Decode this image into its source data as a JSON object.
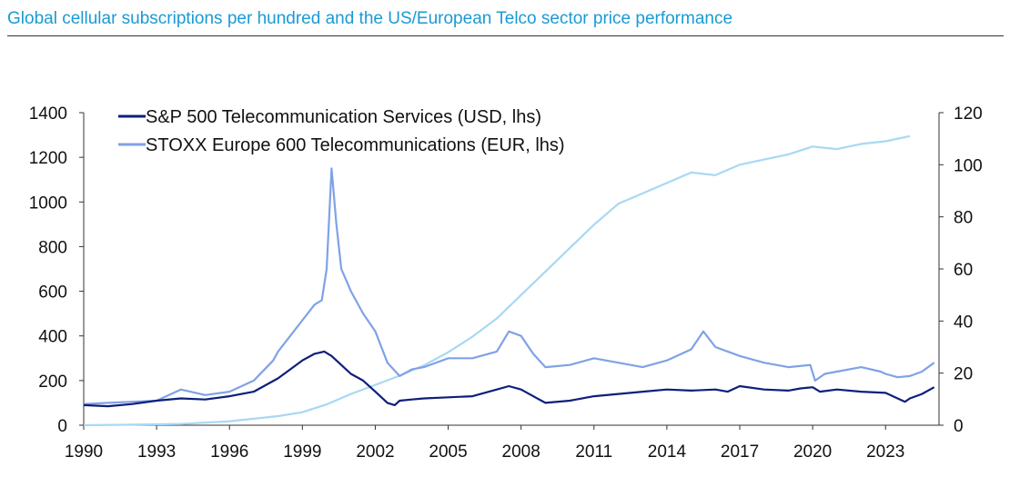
{
  "title": "Global cellular subscriptions per hundred and the US/European Telco sector price performance",
  "colors": {
    "title": "#1a9ad6",
    "sp500": "#0d1f7a",
    "stoxx": "#7fa2e6",
    "subs": "#a8d8f4"
  },
  "chart_data": {
    "type": "line",
    "title": "",
    "xlabel": "",
    "ylabel": "",
    "xlim": [
      1990,
      2025.2
    ],
    "ylim": [
      0,
      1400
    ],
    "ylim_right": [
      0,
      120
    ],
    "x_ticks": [
      "1990",
      "1993",
      "1996",
      "1999",
      "2002",
      "2005",
      "2008",
      "2011",
      "2014",
      "2017",
      "2020",
      "2023"
    ],
    "y_ticks": [
      "0",
      "200",
      "400",
      "600",
      "800",
      "1000",
      "1200",
      "1400"
    ],
    "y_ticks_right": [
      "0",
      "20",
      "40",
      "60",
      "80",
      "100",
      "120"
    ],
    "legend_position": "top-left",
    "grid": false,
    "series": [
      {
        "name": "S&P 500 Telecommunication Services (USD, lhs)",
        "axis": "left",
        "color": "#0d1f7a",
        "x": [
          1990,
          1991,
          1992,
          1993,
          1994,
          1995,
          1996,
          1997,
          1998,
          1999,
          1999.5,
          1999.9,
          2000.2,
          2000.6,
          2001,
          2001.5,
          2002,
          2002.5,
          2002.8,
          2003,
          2003.5,
          2004,
          2005,
          2006,
          2007,
          2007.5,
          2008,
          2008.5,
          2009,
          2010,
          2011,
          2012,
          2013,
          2014,
          2015,
          2016,
          2016.5,
          2017,
          2018,
          2019,
          2019.5,
          2020,
          2020.3,
          2021,
          2022,
          2023,
          2023.8,
          2024,
          2024.5,
          2025
        ],
        "y": [
          90,
          85,
          95,
          110,
          120,
          115,
          130,
          150,
          210,
          290,
          320,
          330,
          310,
          270,
          230,
          200,
          150,
          100,
          90,
          110,
          115,
          120,
          125,
          130,
          160,
          175,
          160,
          130,
          100,
          110,
          130,
          140,
          150,
          160,
          155,
          160,
          150,
          175,
          160,
          155,
          165,
          170,
          150,
          160,
          150,
          145,
          105,
          120,
          140,
          170
        ]
      },
      {
        "name": "STOXX Europe 600 Telecommunications (EUR, lhs)",
        "axis": "left",
        "color": "#7fa2e6",
        "x": [
          1990,
          1991,
          1992,
          1993,
          1994,
          1995,
          1996,
          1997,
          1997.8,
          1998,
          1998.5,
          1999,
          1999.5,
          1999.8,
          2000,
          2000.2,
          2000.4,
          2000.6,
          2001,
          2001.5,
          2002,
          2002.5,
          2003,
          2003.5,
          2004,
          2005,
          2006,
          2007,
          2007.5,
          2008,
          2008.5,
          2009,
          2010,
          2011,
          2012,
          2013,
          2014,
          2015,
          2015.5,
          2016,
          2017,
          2018,
          2019,
          2019.9,
          2020.1,
          2020.5,
          2021,
          2022,
          2022.8,
          2023,
          2023.5,
          2024,
          2024.5,
          2025
        ],
        "y": [
          95,
          100,
          105,
          110,
          160,
          135,
          150,
          200,
          290,
          330,
          400,
          470,
          540,
          560,
          700,
          1150,
          900,
          700,
          600,
          500,
          420,
          280,
          220,
          250,
          260,
          300,
          300,
          330,
          420,
          400,
          320,
          260,
          270,
          300,
          280,
          260,
          290,
          340,
          420,
          350,
          310,
          280,
          260,
          270,
          200,
          230,
          240,
          260,
          240,
          230,
          215,
          220,
          240,
          280
        ]
      },
      {
        "name": "",
        "axis": "right",
        "color": "#a8d8f4",
        "x": [
          1990,
          1992,
          1994,
          1996,
          1998,
          1999,
          2000,
          2001,
          2002,
          2003,
          2004,
          2005,
          2006,
          2007,
          2008,
          2009,
          2010,
          2011,
          2012,
          2013,
          2014,
          2015,
          2016,
          2017,
          2018,
          2019,
          2020,
          2021,
          2022,
          2023,
          2024
        ],
        "y": [
          0,
          0.2,
          0.5,
          1.5,
          3.5,
          5,
          8,
          12,
          15.5,
          19,
          23,
          28,
          34,
          41,
          50,
          59,
          68,
          77,
          85,
          89,
          93,
          97,
          96,
          100,
          102,
          104,
          107,
          106,
          108,
          109,
          111
        ]
      }
    ]
  }
}
